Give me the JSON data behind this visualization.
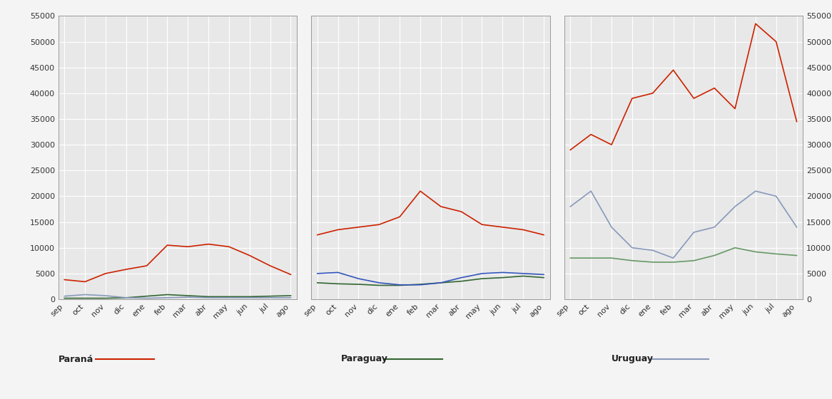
{
  "months": [
    "sep",
    "oct",
    "nov",
    "dic",
    "ene",
    "feb",
    "mar",
    "abr",
    "may",
    "jun",
    "jul",
    "ago"
  ],
  "ylim": [
    0,
    55000
  ],
  "yticks": [
    0,
    5000,
    10000,
    15000,
    20000,
    25000,
    30000,
    35000,
    40000,
    45000,
    50000,
    55000
  ],
  "panel_left_red": [
    3800,
    3400,
    5000,
    5800,
    6500,
    10500,
    10200,
    10700,
    10200,
    8500,
    6500,
    4800
  ],
  "panel_left_green": [
    200,
    200,
    200,
    300,
    600,
    900,
    700,
    500,
    500,
    500,
    600,
    700
  ],
  "panel_left_blue": [
    600,
    900,
    700,
    300,
    200,
    300,
    400,
    300,
    300,
    300,
    300,
    300
  ],
  "panel_mid_red": [
    12500,
    13500,
    14000,
    14500,
    16000,
    21000,
    18000,
    17000,
    14500,
    14000,
    13500,
    12500
  ],
  "panel_mid_green": [
    3200,
    3000,
    2900,
    2700,
    2700,
    2900,
    3200,
    3500,
    4000,
    4200,
    4500,
    4200
  ],
  "panel_mid_blue": [
    5000,
    5200,
    4000,
    3200,
    2800,
    2800,
    3200,
    4200,
    5000,
    5200,
    5000,
    4800
  ],
  "panel_right_red": [
    29000,
    32000,
    30000,
    39000,
    40000,
    44500,
    39000,
    41000,
    37000,
    53500,
    50000,
    34500
  ],
  "panel_right_green": [
    8000,
    8000,
    8000,
    7500,
    7200,
    7200,
    7500,
    8500,
    10000,
    9200,
    8800,
    8500
  ],
  "panel_right_blue": [
    18000,
    21000,
    14000,
    10000,
    9500,
    8000,
    13000,
    14000,
    18000,
    21000,
    20000,
    14000
  ],
  "color_red": "#cc2200",
  "color_green_dark": "#336633",
  "color_blue_dark": "#3355bb",
  "color_blue_light": "#8899bb",
  "color_green_light": "#669966",
  "legend_parana": "Paraná",
  "legend_paraguay": "Paraguay",
  "legend_uruguay": "Uruguay",
  "legend_color_red": "#cc2200",
  "legend_color_green": "#336633",
  "legend_color_blue": "#8899bb",
  "fig_bg": "#f4f4f4",
  "plot_bg": "#e8e8e8",
  "grid_color": "#ffffff",
  "spine_color": "#999999",
  "tick_color": "#333333",
  "font_size_tick": 8,
  "font_size_legend": 9
}
